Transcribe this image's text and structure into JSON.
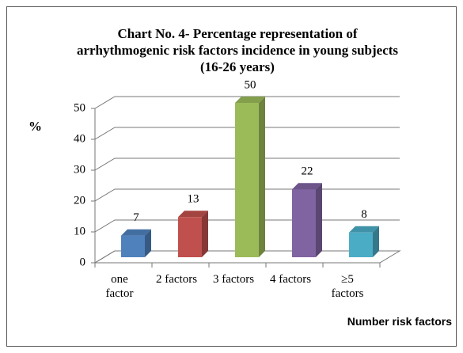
{
  "chart_data": {
    "type": "bar3d",
    "title": "Chart No. 4- Percentage representation of arrhythmogenic risk factors incidence in young subjects (16-26 years)",
    "y_label": "%",
    "x_label": "Number risk factors",
    "categories": [
      "one factor",
      "2 factors",
      "3 factors",
      "4 factors",
      "≥5 factors"
    ],
    "values": [
      7,
      13,
      50,
      22,
      8
    ],
    "colors": [
      "#4f81bd",
      "#c0504d",
      "#9bbb59",
      "#8064a2",
      "#4bacc6"
    ],
    "ylim": [
      0,
      50
    ],
    "yticks": [
      0,
      10,
      20,
      30,
      40,
      50
    ],
    "grid": true
  }
}
